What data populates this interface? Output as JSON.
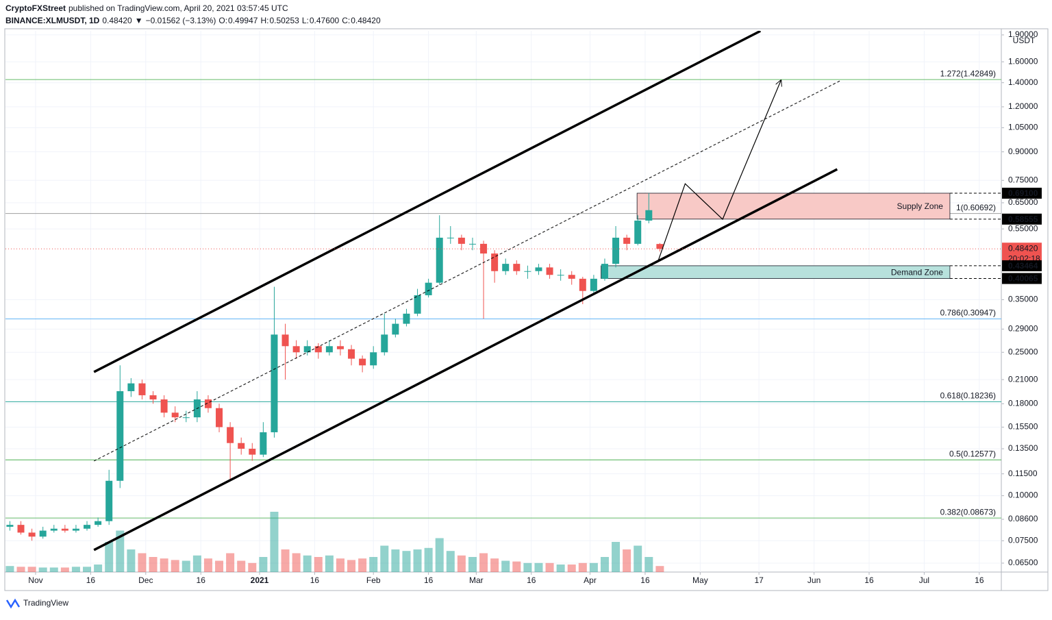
{
  "chart_data": {
    "type": "candlestick",
    "header": {
      "author": "CryptoFXStreet",
      "published": "published on TradingView.com, April 20, 2021 03:57:45 UTC",
      "symbol": "BINANCE:XLMUSDT, 1D",
      "last": "0.48420",
      "arrow": "▼",
      "change": "−0.01562 (−3.13%)",
      "ohlc": [
        "O:",
        "0.49947",
        "H:",
        "0.50253",
        "L:",
        "0.47600",
        "C:",
        "0.48420"
      ]
    },
    "footer": "TradingView",
    "y_unit": "USDT",
    "log_scale": true,
    "grid": true,
    "up_color": "#26a69a",
    "down_color": "#ef5350",
    "x": [
      -7,
      -4,
      -1,
      2,
      5,
      8,
      11,
      14,
      17,
      20,
      23,
      26,
      29,
      32,
      35,
      38,
      41,
      44,
      47,
      50,
      53,
      56,
      59,
      62,
      65,
      68,
      71,
      74,
      77,
      80,
      83,
      86,
      89,
      92,
      95,
      98,
      101,
      104,
      107,
      110,
      113,
      116,
      119,
      122,
      125,
      128,
      131,
      134,
      137,
      140,
      143,
      146,
      149,
      152,
      155,
      158,
      161,
      164,
      167,
      170
    ],
    "open": [
      0.082,
      0.083,
      0.079,
      0.077,
      0.08,
      0.081,
      0.08,
      0.081,
      0.083,
      0.085,
      0.11,
      0.195,
      0.205,
      0.19,
      0.185,
      0.17,
      0.165,
      0.165,
      0.185,
      0.175,
      0.155,
      0.14,
      0.135,
      0.13,
      0.15,
      0.28,
      0.26,
      0.25,
      0.26,
      0.25,
      0.26,
      0.255,
      0.24,
      0.23,
      0.25,
      0.28,
      0.3,
      0.32,
      0.36,
      0.39,
      0.52,
      0.52,
      0.5,
      0.5,
      0.47,
      0.42,
      0.44,
      0.42,
      0.42,
      0.43,
      0.41,
      0.41,
      0.4,
      0.37,
      0.4,
      0.44,
      0.52,
      0.5,
      0.58,
      0.49947
    ],
    "high": [
      0.085,
      0.085,
      0.081,
      0.082,
      0.083,
      0.083,
      0.083,
      0.085,
      0.087,
      0.118,
      0.23,
      0.212,
      0.21,
      0.195,
      0.19,
      0.177,
      0.172,
      0.195,
      0.19,
      0.18,
      0.16,
      0.145,
      0.14,
      0.16,
      0.38,
      0.3,
      0.27,
      0.27,
      0.265,
      0.27,
      0.27,
      0.262,
      0.245,
      0.26,
      0.32,
      0.31,
      0.33,
      0.375,
      0.4,
      0.6,
      0.56,
      0.53,
      0.52,
      0.51,
      0.48,
      0.455,
      0.45,
      0.435,
      0.44,
      0.44,
      0.425,
      0.42,
      0.405,
      0.41,
      0.455,
      0.56,
      0.53,
      0.6,
      0.691,
      0.50253
    ],
    "low": [
      0.08,
      0.078,
      0.075,
      0.076,
      0.079,
      0.079,
      0.079,
      0.08,
      0.082,
      0.083,
      0.105,
      0.188,
      0.185,
      0.18,
      0.165,
      0.16,
      0.16,
      0.16,
      0.17,
      0.15,
      0.11,
      0.13,
      0.125,
      0.128,
      0.145,
      0.21,
      0.24,
      0.245,
      0.24,
      0.245,
      0.245,
      0.23,
      0.22,
      0.225,
      0.245,
      0.275,
      0.295,
      0.315,
      0.355,
      0.385,
      0.5,
      0.48,
      0.48,
      0.31,
      0.39,
      0.41,
      0.41,
      0.4,
      0.41,
      0.4,
      0.395,
      0.385,
      0.34,
      0.365,
      0.395,
      0.43,
      0.48,
      0.495,
      0.57,
      0.476
    ],
    "close": [
      0.083,
      0.079,
      0.077,
      0.08,
      0.081,
      0.08,
      0.081,
      0.083,
      0.085,
      0.11,
      0.195,
      0.205,
      0.19,
      0.185,
      0.17,
      0.165,
      0.165,
      0.185,
      0.175,
      0.155,
      0.14,
      0.135,
      0.13,
      0.15,
      0.28,
      0.26,
      0.25,
      0.26,
      0.25,
      0.26,
      0.255,
      0.24,
      0.23,
      0.25,
      0.28,
      0.3,
      0.32,
      0.36,
      0.39,
      0.52,
      0.52,
      0.5,
      0.5,
      0.47,
      0.42,
      0.44,
      0.42,
      0.42,
      0.43,
      0.41,
      0.41,
      0.4,
      0.37,
      0.4,
      0.44,
      0.52,
      0.5,
      0.58,
      0.62,
      0.4842
    ],
    "volume": [
      8,
      7,
      7,
      6,
      6,
      6,
      7,
      7,
      10,
      40,
      55,
      30,
      25,
      20,
      18,
      16,
      15,
      22,
      18,
      15,
      25,
      15,
      12,
      20,
      80,
      30,
      25,
      22,
      20,
      22,
      18,
      16,
      18,
      20,
      35,
      30,
      28,
      30,
      32,
      45,
      28,
      22,
      20,
      25,
      18,
      15,
      14,
      12,
      12,
      12,
      10,
      10,
      12,
      12,
      20,
      40,
      30,
      35,
      20,
      8
    ],
    "vlim": [
      0,
      100
    ],
    "xlim": [
      -8.2,
      263
    ],
    "ylim": [
      0.0614,
      1.95
    ],
    "xticks": [
      {
        "value": 0,
        "label": "Nov"
      },
      {
        "value": 15,
        "label": "16"
      },
      {
        "value": 30,
        "label": "Dec"
      },
      {
        "value": 45,
        "label": "16"
      },
      {
        "value": 61,
        "label": "2021",
        "bold": true
      },
      {
        "value": 76,
        "label": "16"
      },
      {
        "value": 92,
        "label": "Feb"
      },
      {
        "value": 107,
        "label": "16"
      },
      {
        "value": 120,
        "label": "Mar"
      },
      {
        "value": 135,
        "label": "16"
      },
      {
        "value": 151,
        "label": "Apr"
      },
      {
        "value": 166,
        "label": "16"
      },
      {
        "value": 181,
        "label": "May"
      },
      {
        "value": 197,
        "label": "17"
      },
      {
        "value": 212,
        "label": "Jun"
      },
      {
        "value": 227,
        "label": "16"
      },
      {
        "value": 242,
        "label": "Jul"
      },
      {
        "value": 257,
        "label": "16"
      }
    ],
    "yticks": [
      {
        "value": 1.9,
        "label": "1.90000"
      },
      {
        "value": 1.6,
        "label": "1.60000"
      },
      {
        "value": 1.4,
        "label": "1.40000"
      },
      {
        "value": 1.2,
        "label": "1.20000"
      },
      {
        "value": 1.05,
        "label": "1.05000"
      },
      {
        "value": 0.9,
        "label": "0.90000"
      },
      {
        "value": 0.75,
        "label": "0.75000"
      },
      {
        "value": 0.65,
        "label": "0.65000"
      },
      {
        "value": 0.55,
        "label": "0.55000"
      },
      {
        "value": 0.35,
        "label": "0.35000"
      },
      {
        "value": 0.29,
        "label": "0.29000"
      },
      {
        "value": 0.25,
        "label": "0.25000"
      },
      {
        "value": 0.21,
        "label": "0.21000"
      },
      {
        "value": 0.18,
        "label": "0.18000"
      },
      {
        "value": 0.155,
        "label": "0.15500"
      },
      {
        "value": 0.135,
        "label": "0.13500"
      },
      {
        "value": 0.115,
        "label": "0.11500"
      },
      {
        "value": 0.1,
        "label": "0.10000"
      },
      {
        "value": 0.086,
        "label": "0.08600"
      },
      {
        "value": 0.075,
        "label": "0.07500"
      },
      {
        "value": 0.065,
        "label": "0.06500"
      }
    ],
    "fib_levels": [
      {
        "value": 1.42849,
        "label": "1.272(1.42849)",
        "color": "#66bb6a"
      },
      {
        "value": 0.60692,
        "label": "1(0.60692)",
        "color": "#9e9e9e"
      },
      {
        "value": 0.30947,
        "label": "0.786(0.30947)",
        "color": "#64b5f6"
      },
      {
        "value": 0.18236,
        "label": "0.618(0.18236)",
        "color": "#26a69a"
      },
      {
        "value": 0.12577,
        "label": "0.5(0.12577)",
        "color": "#4caf50"
      },
      {
        "value": 0.08673,
        "label": "0.382(0.08673)",
        "color": "#66bb6a"
      }
    ],
    "zones": [
      {
        "name": "Supply Zone",
        "low": 0.58555,
        "high": 0.691,
        "start": 163.8,
        "end": 249,
        "color": "#f8c9c6"
      },
      {
        "name": "Demand Zone",
        "low": 0.40065,
        "high": 0.43464,
        "start": 154,
        "end": 249,
        "color": "#b7e1dc"
      }
    ],
    "trendlines": [
      {
        "x": [
          15.9,
          197.4
        ],
        "y": [
          0.2205,
          1.948
        ],
        "dashed": false
      },
      {
        "x": [
          15.9,
          218.3
        ],
        "y": [
          0.0707,
          0.805
        ],
        "dashed": false
      },
      {
        "x": [
          15.9,
          219.4
        ],
        "y": [
          0.1248,
          1.422
        ],
        "dashed": true
      }
    ],
    "projection": {
      "x": [
        169.4,
        176.9,
        187.1,
        203
      ],
      "y": [
        0.444,
        0.734,
        0.585,
        1.422
      ]
    },
    "price_markers": [
      {
        "value": 0.691,
        "label": "0.69100"
      },
      {
        "value": 0.58555,
        "label": "0.58555"
      },
      {
        "value": 0.43464,
        "label": "0.43464"
      },
      {
        "value": 0.40065,
        "label": "0.40065"
      }
    ],
    "current_price": {
      "value": 0.4842,
      "label": "0.48420",
      "countdown": "20:02:18"
    }
  }
}
